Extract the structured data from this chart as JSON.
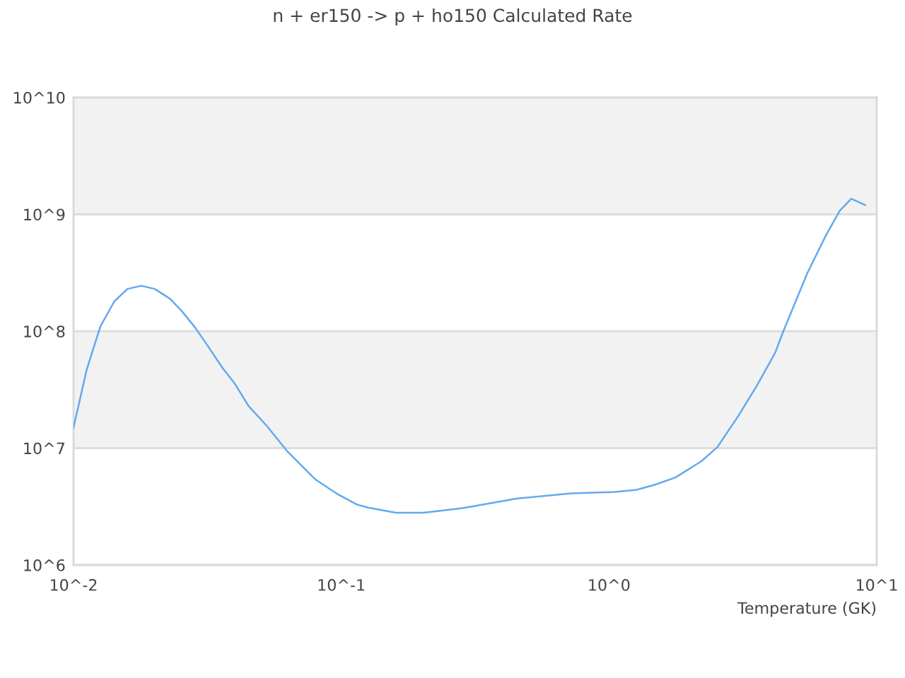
{
  "chart_data": {
    "type": "line",
    "title": "n + er150 -> p + ho150 Calculated Rate",
    "xlabel": "Temperature (GK)",
    "log": "xy",
    "grid": "y",
    "marker": "none",
    "line_style": "solid",
    "xlim": [
      0.01,
      10
    ],
    "ylim": [
      1000000,
      10000000000
    ],
    "xticks": [
      {
        "value": 0.01,
        "label": "10^-2"
      },
      {
        "value": 0.1,
        "label": "10^-1"
      },
      {
        "value": 1,
        "label": "10^0"
      },
      {
        "value": 10,
        "label": "10^1"
      }
    ],
    "yticks": [
      {
        "value": 1000000,
        "label": "10^6"
      },
      {
        "value": 10000000,
        "label": "10^7"
      },
      {
        "value": 100000000,
        "label": "10^8"
      },
      {
        "value": 1000000000,
        "label": "10^9"
      },
      {
        "value": 10000000000,
        "label": "10^10"
      }
    ],
    "bands": [
      {
        "axis": "y",
        "from": 10000000,
        "to": 100000000,
        "color": "#f2f2f2"
      },
      {
        "axis": "y",
        "from": 1000000000,
        "to": 10000000000,
        "color": "#f2f2f2"
      }
    ],
    "x": [
      0.01,
      0.0112,
      0.0126,
      0.0142,
      0.0159,
      0.0179,
      0.0201,
      0.0229,
      0.0253,
      0.0285,
      0.0321,
      0.0359,
      0.0399,
      0.045,
      0.0527,
      0.0631,
      0.08,
      0.0958,
      0.114,
      0.126,
      0.16,
      0.203,
      0.28,
      0.315,
      0.355,
      0.451,
      0.572,
      0.726,
      0.921,
      1.04,
      1.27,
      1.48,
      1.77,
      2.21,
      2.54,
      3.03,
      3.56,
      4.17,
      4.51,
      5.51,
      6.46,
      7.27,
      8.03,
      9.06
    ],
    "series": [
      {
        "color": "#63a9ef",
        "values": [
          15000000.0,
          47000000.0,
          110000000.0,
          180000000.0,
          230000000.0,
          245000000.0,
          230000000.0,
          190000000.0,
          150000000.0,
          107000000.0,
          72000000.0,
          49000000.0,
          36000000.0,
          23000000.0,
          15500000.0,
          9300000.0,
          5400000.0,
          4100000.0,
          3300000.0,
          3100000.0,
          2800000.0,
          2800000.0,
          3050000.0,
          3200000.0,
          3350000.0,
          3700000.0,
          3900000.0,
          4100000.0,
          4170000.0,
          4200000.0,
          4400000.0,
          4850000.0,
          5600000.0,
          7700000.0,
          10200000.0,
          18600000.0,
          34000000.0,
          65000000.0,
          104000000.0,
          315000000.0,
          660000000.0,
          1070000000.0,
          1360000000.0,
          1200000000.0
        ]
      }
    ]
  }
}
